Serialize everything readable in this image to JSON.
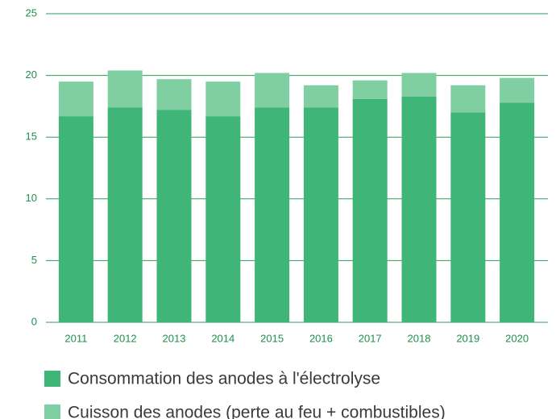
{
  "chart_data": {
    "type": "bar",
    "stacked": true,
    "categories": [
      "2011",
      "2012",
      "2013",
      "2014",
      "2015",
      "2016",
      "2017",
      "2018",
      "2019",
      "2020"
    ],
    "series": [
      {
        "name": "Consommation des anodes à l'électrolyse",
        "color": "#3fb578",
        "values": [
          16.7,
          17.4,
          17.2,
          16.7,
          17.4,
          17.4,
          18.1,
          18.3,
          17.0,
          17.8
        ]
      },
      {
        "name": "Cuisson des anodes (perte au feu + combustibles)",
        "color": "#80cfa2",
        "values": [
          2.8,
          3.0,
          2.5,
          2.8,
          2.8,
          1.8,
          1.5,
          1.9,
          2.2,
          2.0
        ]
      }
    ],
    "ylim": [
      0,
      25
    ],
    "yticks": [
      0,
      5,
      10,
      15,
      20,
      25
    ],
    "grid": true
  }
}
